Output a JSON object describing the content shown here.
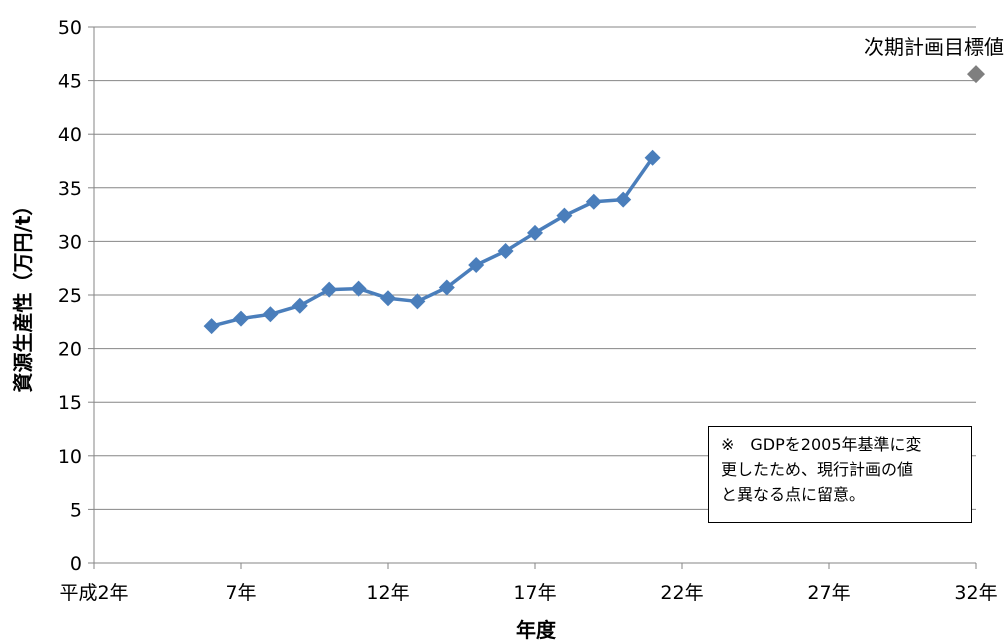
{
  "chart_data": {
    "type": "line",
    "title": "",
    "xlabel": "年度",
    "ylabel": "資源生産性（万円/t）",
    "ylim": [
      0,
      50
    ],
    "yticks": [
      0,
      5,
      10,
      15,
      20,
      25,
      30,
      35,
      40,
      45,
      50
    ],
    "xlim": [
      2,
      32
    ],
    "xticks": [
      {
        "value": 2,
        "label": "平成2年"
      },
      {
        "value": 7,
        "label": "7年"
      },
      {
        "value": 12,
        "label": "12年"
      },
      {
        "value": 17,
        "label": "17年"
      },
      {
        "value": 22,
        "label": "22年"
      },
      {
        "value": 27,
        "label": "27年"
      },
      {
        "value": 32,
        "label": "32年"
      }
    ],
    "grid": true,
    "series": [
      {
        "color": "#4a7ebb",
        "x": [
          6,
          7,
          8,
          9,
          10,
          11,
          12,
          13,
          14,
          15,
          16,
          17,
          18,
          19,
          20,
          21
        ],
        "values": [
          22.1,
          22.8,
          23.2,
          24.0,
          25.5,
          25.6,
          24.7,
          24.4,
          25.7,
          27.8,
          29.1,
          30.8,
          32.4,
          33.7,
          33.9,
          37.8
        ]
      }
    ],
    "target": {
      "label": "次期計画目標値",
      "x": 32,
      "value": 45.6,
      "color": "#7f7f7f"
    },
    "note": [
      "※　GDPを2005年基準に変",
      "更したため、現行計画の値",
      "と異なる点に留意。"
    ]
  }
}
